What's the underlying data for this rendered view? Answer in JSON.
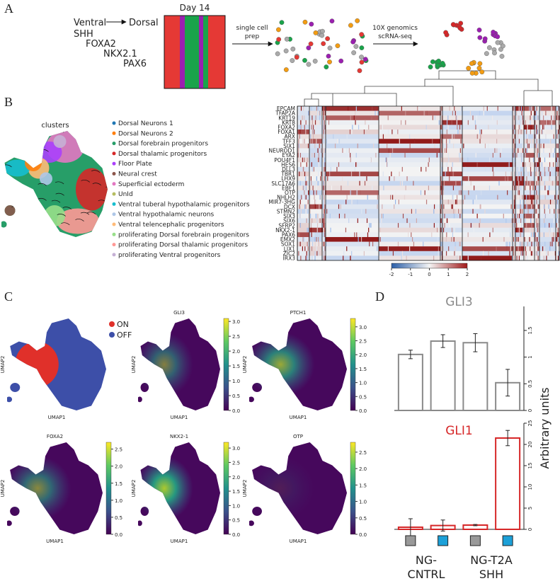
{
  "panels": {
    "a": "A",
    "b": "B",
    "c": "C",
    "d": "D"
  },
  "schematic": {
    "ventral": "Ventral",
    "dorsal": "Dorsal",
    "genes": [
      {
        "name": "SHH",
        "color": "#1aa34a"
      },
      {
        "name": "FOXA2",
        "color": "#f39c12"
      },
      {
        "name": "NKX2.1",
        "color": "#9b1fb0"
      },
      {
        "name": "PAX6",
        "color": "#e53935"
      }
    ],
    "day": "Day 14",
    "step1": [
      "single cell",
      "prep"
    ],
    "step2": [
      "10X genomics",
      "scRNA-seq"
    ]
  },
  "clusters": {
    "title": "clusters",
    "items": [
      {
        "name": "Dorsal Neurons 1",
        "color": "#1f77b4"
      },
      {
        "name": "Dorsal Neurons 2",
        "color": "#ff7f0e"
      },
      {
        "name": "Dorsal forebrain progenitors",
        "color": "#279e68"
      },
      {
        "name": "Dorsal thalamic progenitors",
        "color": "#d62728"
      },
      {
        "name": "Floor Plate",
        "color": "#aa40fc"
      },
      {
        "name": "Neural crest",
        "color": "#8c564b"
      },
      {
        "name": "Superficial ectoderm",
        "color": "#e377c2"
      },
      {
        "name": "UnId",
        "color": "#b5bd61"
      },
      {
        "name": "Ventral tuberal hypothalamic progenitors",
        "color": "#17becf"
      },
      {
        "name": "Ventral hypothalamic neurons",
        "color": "#aec7e8"
      },
      {
        "name": "Ventral telencephalic progenitors",
        "color": "#ffbb78"
      },
      {
        "name": "proliferating Dorsal forebrain progenitors",
        "color": "#98df8a"
      },
      {
        "name": "proliferating Dorsal thalamic progenitors",
        "color": "#ff9896"
      },
      {
        "name": "proliferating Ventral progenitors",
        "color": "#c5b0d5"
      }
    ]
  },
  "heatmap": {
    "genes": [
      "EPCAM",
      "TFAP2A",
      "KRT19",
      "KRT8",
      "FOXA2",
      "FOXA1",
      "ARX",
      "TFF3",
      "SIX1",
      "NEUROD1",
      "EYA2",
      "POU4F1",
      "HES6",
      "DLL3",
      "TBR1",
      "LHX9",
      "SLC17A6",
      "EBF1",
      "OTP",
      "NHLH2",
      "MIR7-3HG",
      "DCX",
      "STMN2",
      "SIX3",
      "SIX6",
      "SFRP2",
      "NKX2-1",
      "PAX6",
      "EMX2",
      "SOX1",
      "LIX1",
      "ZIC2",
      "IRX3"
    ],
    "colorbar": {
      "lim": [
        -2,
        2
      ],
      "ticks": [
        -2,
        -1,
        0,
        1,
        2
      ]
    }
  },
  "features": {
    "x_label": "UMAP1",
    "y_label": "UMAP2",
    "legend": [
      {
        "name": "ON",
        "color": "#e0302a"
      },
      {
        "name": "OFF",
        "color": "#3d4fa8"
      }
    ],
    "plots": [
      {
        "title": "GLI3",
        "clim": [
          0,
          3.1
        ],
        "cticks": [
          {
            "value": 0,
            "label": "0.0"
          },
          {
            "value": 0.5,
            "label": "0.5"
          },
          {
            "value": 1,
            "label": "1.0"
          },
          {
            "value": 1.5,
            "label": "1.5"
          },
          {
            "value": 2,
            "label": "2.0"
          },
          {
            "value": 2.5,
            "label": "2.5"
          },
          {
            "value": 3,
            "label": "3.0"
          }
        ]
      },
      {
        "title": "PTCH1",
        "clim": [
          0,
          3.3
        ],
        "cticks": [
          {
            "value": 0,
            "label": "0.0"
          },
          {
            "value": 0.5,
            "label": "0.5"
          },
          {
            "value": 1,
            "label": "1.0"
          },
          {
            "value": 1.5,
            "label": "1.5"
          },
          {
            "value": 2,
            "label": "2.0"
          },
          {
            "value": 2.5,
            "label": "2.5"
          },
          {
            "value": 3,
            "label": "3.0"
          }
        ]
      },
      {
        "title": "FOXA2",
        "clim": [
          0,
          2.7
        ],
        "cticks": [
          {
            "value": 0,
            "label": "0.0"
          },
          {
            "value": 0.5,
            "label": "0.5"
          },
          {
            "value": 1,
            "label": "1.0"
          },
          {
            "value": 1.5,
            "label": "1.5"
          },
          {
            "value": 2,
            "label": "2.0"
          },
          {
            "value": 2.5,
            "label": "2.5"
          }
        ]
      },
      {
        "title": "NKX2-1",
        "clim": [
          0,
          3.2
        ],
        "cticks": [
          {
            "value": 0,
            "label": "0.0"
          },
          {
            "value": 0.5,
            "label": "0.5"
          },
          {
            "value": 1,
            "label": "1.0"
          },
          {
            "value": 1.5,
            "label": "1.5"
          },
          {
            "value": 2,
            "label": "2.0"
          },
          {
            "value": 2.5,
            "label": "2.5"
          },
          {
            "value": 3,
            "label": "3.0"
          }
        ]
      },
      {
        "title": "OTP",
        "clim": [
          0,
          2.8
        ],
        "cticks": [
          {
            "value": 0,
            "label": "0.0"
          },
          {
            "value": 0.5,
            "label": "0.5"
          },
          {
            "value": 1,
            "label": "1.0"
          },
          {
            "value": 1.5,
            "label": "1.5"
          },
          {
            "value": 2,
            "label": "2.0"
          },
          {
            "value": 2.5,
            "label": "2.5"
          }
        ]
      }
    ]
  },
  "chart_data": [
    {
      "type": "bar",
      "title": "GLI3",
      "values": [
        1.05,
        1.3,
        1.27,
        0.52
      ],
      "errors": [
        0.08,
        0.12,
        0.17,
        0.25
      ],
      "color": "#8a8a8a",
      "ylim": [
        0,
        1.95
      ],
      "yticks": [
        0,
        0.5,
        1,
        1.5
      ],
      "axis_side": "right"
    },
    {
      "type": "bar",
      "title": "GLI1",
      "values": [
        0.5,
        0.9,
        1.0,
        21.5
      ],
      "errors": [
        2.0,
        1.3,
        0.15,
        1.8
      ],
      "color": "#d62728",
      "ylim": [
        0,
        25
      ],
      "yticks": [
        0,
        5,
        10,
        15,
        20,
        25
      ],
      "axis_side": "right"
    }
  ],
  "value_axis_label": "Arbitrary units",
  "groups": [
    {
      "lines": [
        "NG-",
        "CNTRL"
      ]
    },
    {
      "lines": [
        "NG-T2A",
        "SHH"
      ]
    }
  ]
}
